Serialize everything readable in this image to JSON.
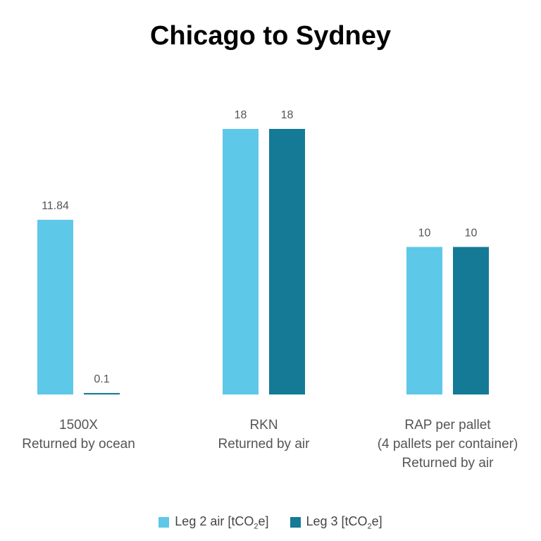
{
  "colors": {
    "leg2": "#5ec8e8",
    "leg3": "#147a96",
    "text": "#555555"
  },
  "chart_data": {
    "type": "bar",
    "title": "Chicago to Sydney",
    "categories": [
      [
        "1500X",
        "Returned by ocean"
      ],
      [
        "RKN",
        "Returned by air"
      ],
      [
        "RAP per pallet",
        "(4 pallets per container)",
        "Returned by air"
      ]
    ],
    "series": [
      {
        "name": "Leg 2 air [tCO2e]",
        "values": [
          11.84,
          18,
          10
        ]
      },
      {
        "name": "Leg 3 [tCO2e]",
        "values": [
          0.1,
          18,
          10
        ]
      }
    ],
    "value_labels": [
      [
        "11.84",
        "0.1"
      ],
      [
        "18",
        "18"
      ],
      [
        "10",
        "10"
      ]
    ],
    "ylim": [
      0,
      18
    ],
    "grid": false,
    "legend": "bottom"
  },
  "legend": {
    "leg2": {
      "prefix": "Leg 2 air [tCO",
      "sub": "2",
      "suffix": "e]"
    },
    "leg3": {
      "prefix": "Leg 3 [tCO",
      "sub": "2",
      "suffix": "e]"
    }
  }
}
